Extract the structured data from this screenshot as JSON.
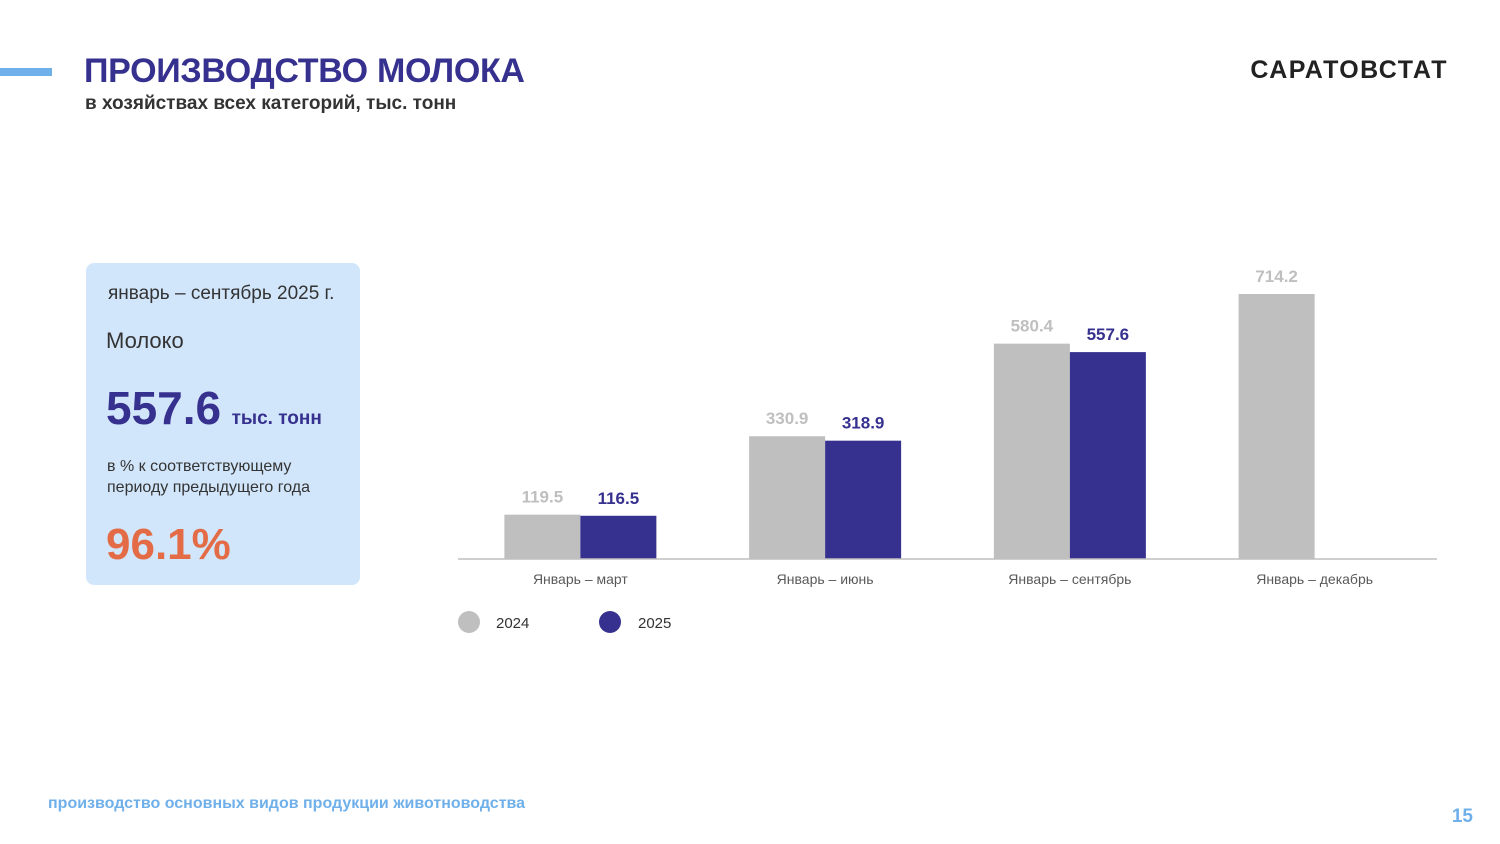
{
  "header": {
    "title": "ПРОИЗВОДСТВО МОЛОКА",
    "subtitle": "в хозяйствах всех категорий, тыс. тонн",
    "brand": "САРАТОВСТАТ"
  },
  "info_card": {
    "period": "январь – сентябрь 2025 г.",
    "product": "Молоко",
    "value": "557.6",
    "unit": "тыс. тонн",
    "compare_label": "в % к соответствующему периоду предыдущего года",
    "percent": "96.1%"
  },
  "colors": {
    "accent": "#36318f",
    "light_blue": "#6fb0ea",
    "card_bg": "#d2e6fb",
    "percent": "#e36c47",
    "series_2024": "#bfbfbf",
    "series_2025": "#36318f"
  },
  "chart_data": {
    "type": "bar",
    "categories": [
      "Январь – март",
      "Январь – июнь",
      "Январь – сентябрь",
      "Январь – декабрь"
    ],
    "series": [
      {
        "name": "2024",
        "values": [
          119.5,
          330.9,
          580.4,
          714.2
        ],
        "color": "#bfbfbf",
        "label_color": "#bfbfbf"
      },
      {
        "name": "2025",
        "values": [
          116.5,
          318.9,
          557.6,
          null
        ],
        "color": "#36318f",
        "label_color": "#36318f"
      }
    ],
    "title": "",
    "xlabel": "",
    "ylabel": "",
    "ylim": [
      0,
      714.2
    ],
    "grid": false,
    "legend": "bottom-left"
  },
  "footer": {
    "section": "производство основных видов продукции животноводства",
    "page": "15"
  }
}
